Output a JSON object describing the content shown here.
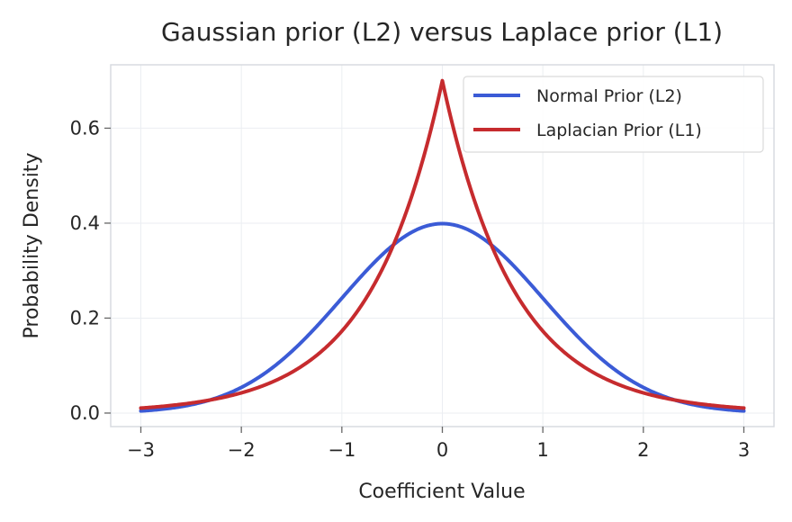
{
  "chart_data": {
    "type": "line",
    "title": "Gaussian prior (L2) versus Laplace prior (L1)",
    "xlabel": "Coefficient Value",
    "ylabel": "Probability Density",
    "xlim": [
      -3.3,
      3.3
    ],
    "ylim": [
      -0.0285,
      0.7335
    ],
    "xticks": [
      -3,
      -2,
      -1,
      0,
      1,
      2,
      3
    ],
    "xtick_labels": [
      "−3",
      "−2",
      "−1",
      "0",
      "1",
      "2",
      "3"
    ],
    "yticks": [
      0.0,
      0.2,
      0.4,
      0.6
    ],
    "ytick_labels": [
      "0.0",
      "0.2",
      "0.4",
      "0.6"
    ],
    "grid": true,
    "legend_position": "top-right",
    "series": [
      {
        "name": "Normal Prior (L2)",
        "color": "#3b5bd6",
        "x": [
          -3.0,
          -2.75,
          -2.5,
          -2.25,
          -2.0,
          -1.75,
          -1.5,
          -1.25,
          -1.0,
          -0.75,
          -0.5,
          -0.25,
          0.0,
          0.25,
          0.5,
          0.75,
          1.0,
          1.25,
          1.5,
          1.75,
          2.0,
          2.25,
          2.5,
          2.75,
          3.0
        ],
        "y": [
          0.0044,
          0.0091,
          0.0175,
          0.0317,
          0.054,
          0.0863,
          0.1295,
          0.1826,
          0.242,
          0.3011,
          0.3521,
          0.3867,
          0.3989,
          0.3867,
          0.3521,
          0.3011,
          0.242,
          0.1826,
          0.1295,
          0.0863,
          0.054,
          0.0317,
          0.0175,
          0.0091,
          0.0044
        ]
      },
      {
        "name": "Laplacian Prior (L1)",
        "color": "#c62b2e",
        "x": [
          -3.0,
          -2.75,
          -2.5,
          -2.25,
          -2.0,
          -1.75,
          -1.5,
          -1.25,
          -1.0,
          -0.75,
          -0.5,
          -0.25,
          0.0,
          0.25,
          0.5,
          0.75,
          1.0,
          1.25,
          1.5,
          1.75,
          2.0,
          2.25,
          2.5,
          2.75,
          3.0
        ],
        "y": [
          0.0101,
          0.0143,
          0.0203,
          0.0288,
          0.0409,
          0.058,
          0.0823,
          0.1168,
          0.1657,
          0.2351,
          0.3337,
          0.4735,
          0.7,
          0.4735,
          0.3337,
          0.2351,
          0.1657,
          0.1168,
          0.0823,
          0.058,
          0.0409,
          0.0288,
          0.0203,
          0.0143,
          0.0101
        ]
      }
    ]
  }
}
